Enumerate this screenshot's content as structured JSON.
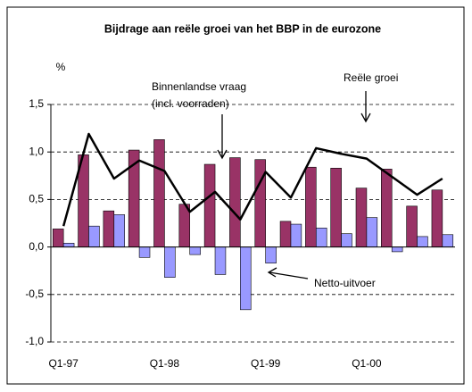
{
  "chart_data": {
    "type": "bar-line",
    "title": "Bijdrage aan reële groei van het BBP in de eurozone",
    "y_label": "%",
    "categories": [
      "Q1-97",
      null,
      null,
      null,
      "Q1-98",
      null,
      null,
      null,
      "Q1-99",
      null,
      null,
      null,
      "Q1-00",
      null,
      null,
      null
    ],
    "series": [
      {
        "kind": "bar",
        "color": "#993366",
        "values": [
          0.19,
          0.97,
          0.38,
          1.02,
          1.13,
          0.45,
          0.87,
          0.94,
          0.92,
          0.27,
          0.84,
          0.83,
          0.62,
          0.82,
          0.43,
          0.6
        ]
      },
      {
        "kind": "bar",
        "color": "#9999ff",
        "values": [
          0.04,
          0.22,
          0.34,
          -0.11,
          -0.32,
          -0.08,
          -0.29,
          -0.66,
          -0.17,
          0.24,
          0.2,
          0.14,
          0.31,
          -0.05,
          0.11,
          0.13
        ]
      },
      {
        "kind": "line",
        "color": "#000000",
        "values": [
          0.22,
          1.19,
          0.72,
          0.91,
          0.8,
          0.37,
          0.58,
          0.29,
          0.79,
          0.52,
          1.04,
          0.98,
          0.93,
          0.74,
          0.55,
          0.72
        ]
      }
    ],
    "annotations": [
      "Binnenlandse vraag",
      "(incl. voorraden)",
      "Reële groei",
      "Netto-uitvoer"
    ],
    "ylim": [
      -1.0,
      1.5
    ],
    "yticks": [
      {
        "value": -1.0,
        "label": "-1,0"
      },
      {
        "value": -0.5,
        "label": "-0,5"
      },
      {
        "value": 0,
        "label": "0,0"
      },
      {
        "value": 0.5,
        "label": "0,5"
      },
      {
        "value": 1.0,
        "label": "1,0"
      },
      {
        "value": 1.5,
        "label": "1,5"
      }
    ],
    "grid": true
  }
}
